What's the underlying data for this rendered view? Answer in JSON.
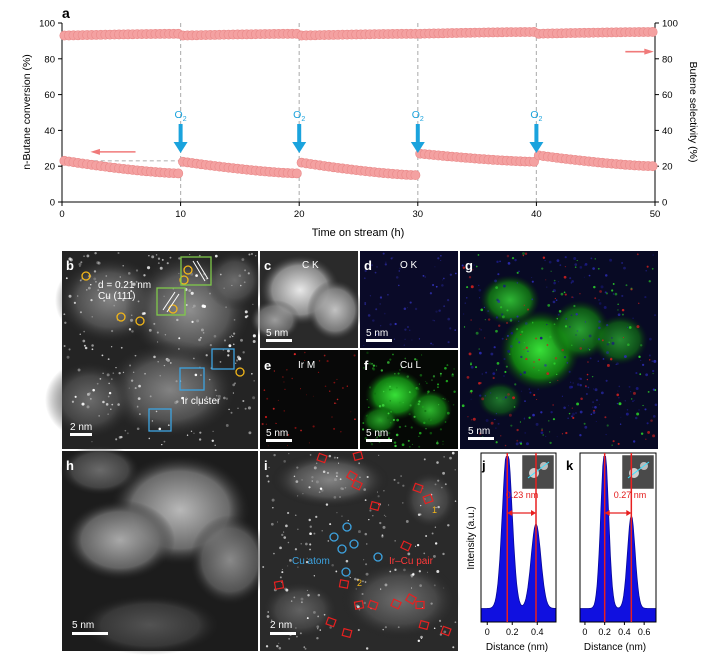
{
  "panel_a": {
    "label": "a",
    "xlabel": "Time on stream (h)",
    "ylabel_left": "n-Butane conversion (%)",
    "ylabel_right": "Butene selectivity (%)",
    "o2_label": "O",
    "o2_sub": "2",
    "x_ticks": [
      "0",
      "10",
      "20",
      "30",
      "40",
      "50"
    ],
    "y_ticks": [
      "0",
      "20",
      "40",
      "60",
      "80",
      "100"
    ],
    "colors": {
      "marker": "#f4a1a1",
      "arrow": "#1aa3dd",
      "axis_arrow": "#f07a7a",
      "dash": "#b8b8b8"
    }
  },
  "chart_data": {
    "type": "scatter",
    "xlabel": "Time on stream (h)",
    "ylabel": "n-Butane conversion (%)",
    "y2label": "Butene selectivity (%)",
    "xlim": [
      0,
      50
    ],
    "ylim": [
      0,
      100
    ],
    "o2_events_h": [
      10,
      20,
      30,
      40
    ],
    "series": [
      {
        "axis": "left",
        "segments": [
          {
            "t0": 0.2,
            "t1": 9.8,
            "v0": 23,
            "v1": 16
          },
          {
            "t0": 10.2,
            "t1": 19.8,
            "v0": 22.5,
            "v1": 16
          },
          {
            "t0": 20.2,
            "t1": 29.8,
            "v0": 22,
            "v1": 15
          },
          {
            "t0": 30.2,
            "t1": 39.8,
            "v0": 27,
            "v1": 22.5
          },
          {
            "t0": 40.2,
            "t1": 49.8,
            "v0": 26,
            "v1": 20
          }
        ]
      },
      {
        "axis": "right",
        "segments": [
          {
            "t0": 0.2,
            "t1": 9.8,
            "v0": 93,
            "v1": 94
          },
          {
            "t0": 10.2,
            "t1": 19.8,
            "v0": 93,
            "v1": 94
          },
          {
            "t0": 20.2,
            "t1": 29.8,
            "v0": 93,
            "v1": 94
          },
          {
            "t0": 30.2,
            "t1": 39.8,
            "v0": 94,
            "v1": 95
          },
          {
            "t0": 40.2,
            "t1": 49.8,
            "v0": 94,
            "v1": 95
          }
        ]
      }
    ],
    "intensity_profiles": [
      {
        "panel": "j",
        "x_ticks": [
          "0",
          "0.2",
          "0.4"
        ],
        "xlim": [
          -0.05,
          0.55
        ],
        "peaks_nm": [
          0.16,
          0.39
        ],
        "peak_heights": [
          0.95,
          0.5
        ],
        "spacing_label": "0.23 nm"
      },
      {
        "panel": "k",
        "x_ticks": [
          "0",
          "0.2",
          "0.4",
          "0.6"
        ],
        "xlim": [
          -0.05,
          0.72
        ],
        "peaks_nm": [
          0.2,
          0.47
        ],
        "peak_heights": [
          0.95,
          0.55
        ],
        "spacing_label": "0.27 nm"
      }
    ]
  },
  "panels": {
    "b": {
      "label": "b",
      "d_text": "d = 0.21 nm",
      "cu_text": "Cu (111)",
      "ir_text": "Ir cluster",
      "scale": "2 nm"
    },
    "c": {
      "label": "c",
      "element": "C K",
      "scale": "5 nm"
    },
    "d": {
      "label": "d",
      "element": "O K",
      "scale": "5 nm"
    },
    "e": {
      "label": "e",
      "element": "Ir M",
      "scale": "5 nm"
    },
    "f": {
      "label": "f",
      "element": "Cu L",
      "scale": "5 nm"
    },
    "g": {
      "label": "g",
      "scale": "5 nm"
    },
    "h": {
      "label": "h",
      "scale": "5 nm"
    },
    "i": {
      "label": "i",
      "cu_atom": "Cu atom",
      "ircu_pair": "Ir–Cu pair",
      "mark1": "1",
      "mark2": "2",
      "scale": "2 nm"
    },
    "j": {
      "label": "j",
      "xlabel": "Distance (nm)",
      "ylabel": "Intensity (a.u.)",
      "spacing": "0.23 nm"
    },
    "k": {
      "label": "k",
      "xlabel": "Distance (nm)",
      "spacing": "0.27 nm"
    }
  }
}
